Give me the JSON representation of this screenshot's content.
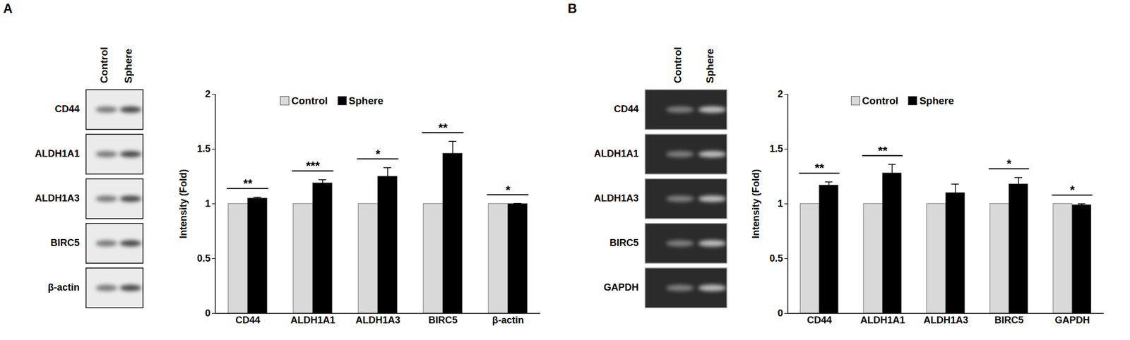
{
  "chart_data": [
    {
      "panel": "A",
      "type": "bar",
      "blot": {
        "lanes": [
          "Control",
          "Sphere"
        ],
        "rows": [
          "CD44",
          "ALDH1A1",
          "ALDH1A3",
          "BIRC5",
          "β-actin"
        ]
      },
      "categories": [
        "CD44",
        "ALDH1A1",
        "ALDH1A3",
        "BIRC5",
        "β-actin"
      ],
      "series": [
        {
          "name": "Control",
          "color": "#d9d9d9",
          "values": [
            1,
            1,
            1,
            1,
            1
          ]
        },
        {
          "name": "Sphere",
          "color": "#000000",
          "values": [
            1.05,
            1.19,
            1.25,
            1.46,
            1.0
          ],
          "errors": [
            0.01,
            0.03,
            0.08,
            0.11,
            0.003
          ]
        }
      ],
      "significance": [
        "**",
        "***",
        "*",
        "**",
        "*"
      ],
      "y_label": "Intensity (Fold)",
      "ylim": [
        0,
        2
      ],
      "yticks": [
        0,
        0.5,
        1,
        1.5,
        2
      ],
      "legend": "top",
      "grid": false
    },
    {
      "panel": "B",
      "type": "bar",
      "blot": {
        "lanes": [
          "Control",
          "Sphere"
        ],
        "rows": [
          "CD44",
          "ALDH1A1",
          "ALDH1A3",
          "BIRC5",
          "GAPDH"
        ]
      },
      "categories": [
        "CD44",
        "ALDH1A1",
        "ALDH1A3",
        "BIRC5",
        "GAPDH"
      ],
      "series": [
        {
          "name": "Control",
          "color": "#d9d9d9",
          "values": [
            1,
            1,
            1,
            1,
            1
          ]
        },
        {
          "name": "Sphere",
          "color": "#000000",
          "values": [
            1.17,
            1.28,
            1.1,
            1.18,
            0.99
          ],
          "errors": [
            0.03,
            0.08,
            0.08,
            0.06,
            0.01
          ]
        }
      ],
      "significance": [
        "**",
        "**",
        null,
        "*",
        "*"
      ],
      "y_label": "Intensity (Fold)",
      "ylim": [
        0,
        2
      ],
      "yticks": [
        0,
        0.5,
        1,
        1.5,
        2
      ],
      "legend": "top",
      "grid": false
    }
  ]
}
